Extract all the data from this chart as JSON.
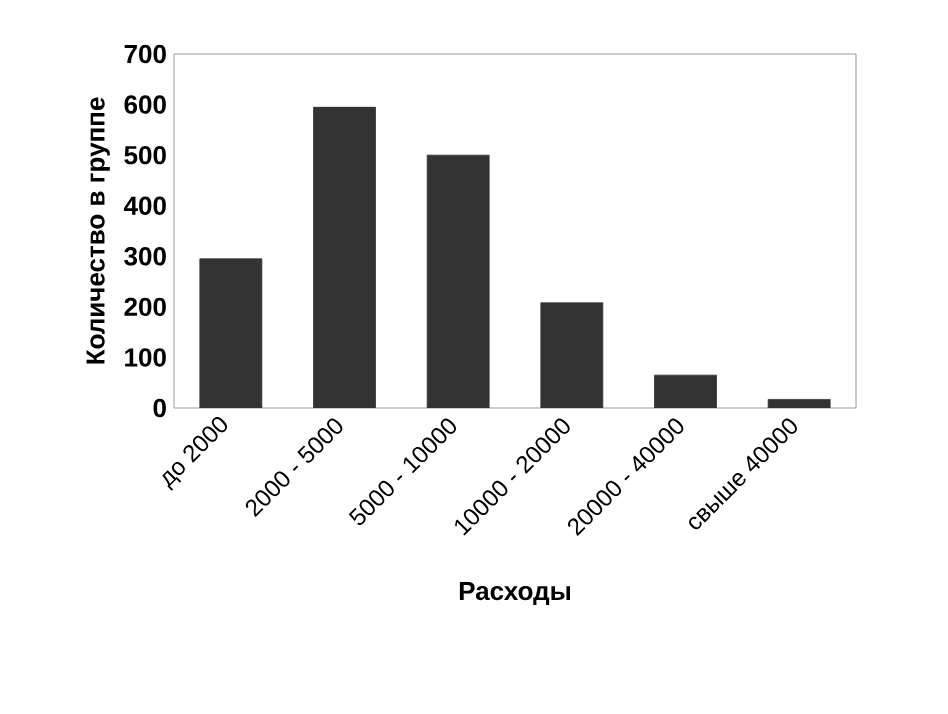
{
  "chart_data": {
    "type": "bar",
    "xlabel": "Расходы",
    "ylabel": "Количество в группе",
    "categories": [
      "до 2000",
      "2000 - 5000",
      "5000 - 10000",
      "10000 - 20000",
      "20000 - 40000",
      "свыше 40000"
    ],
    "values": [
      295,
      595,
      500,
      208,
      65,
      17
    ],
    "color": "#333333",
    "ylim": [
      0,
      700
    ],
    "yticks": [
      0,
      100,
      200,
      300,
      400,
      500,
      600,
      700
    ],
    "grid": false
  }
}
